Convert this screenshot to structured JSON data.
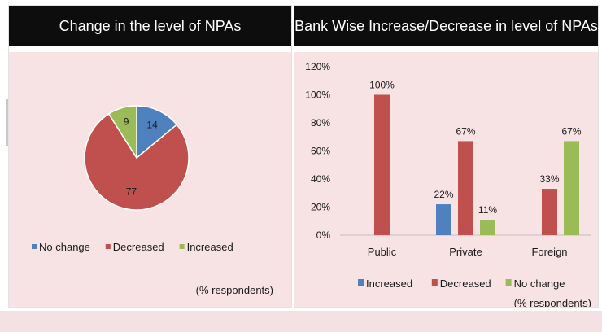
{
  "colors": {
    "no_change": "#4e81bd",
    "decreased": "#c0504d",
    "increased": "#9bbb59",
    "panel_bg": "#f7e2e4",
    "header_bg": "#0d0d0d"
  },
  "chart_data": [
    {
      "type": "pie",
      "title": "Change in the level of NPAs",
      "slices": [
        {
          "label": "No change",
          "value": 14,
          "color": "#4e81bd"
        },
        {
          "label": "Decreased",
          "value": 77,
          "color": "#c0504d"
        },
        {
          "label": "Increased",
          "value": 9,
          "color": "#9bbb59"
        }
      ],
      "legend": [
        "No change",
        "Decreased",
        "Increased"
      ],
      "legend_position": "bottom",
      "note": "(% respondents)"
    },
    {
      "type": "bar",
      "title": "Bank Wise Increase/Decrease in level of NPAs",
      "categories": [
        "Public",
        "Private",
        "Foreign"
      ],
      "series": [
        {
          "name": "Increased",
          "color": "#4e81bd",
          "values": [
            null,
            22,
            null
          ],
          "labels": [
            "",
            "22%",
            ""
          ]
        },
        {
          "name": "Decreased",
          "color": "#c0504d",
          "values": [
            100,
            67,
            33
          ],
          "labels": [
            "100%",
            "67%",
            "33%"
          ]
        },
        {
          "name": "No change",
          "color": "#9bbb59",
          "values": [
            null,
            11,
            67
          ],
          "labels": [
            "",
            "11%",
            "67%"
          ]
        }
      ],
      "ylim": [
        0,
        120
      ],
      "yticks": [
        "0%",
        "20%",
        "40%",
        "60%",
        "80%",
        "100%",
        "120%"
      ],
      "grid": false,
      "legend_position": "bottom",
      "note": "(% respondents)"
    }
  ]
}
